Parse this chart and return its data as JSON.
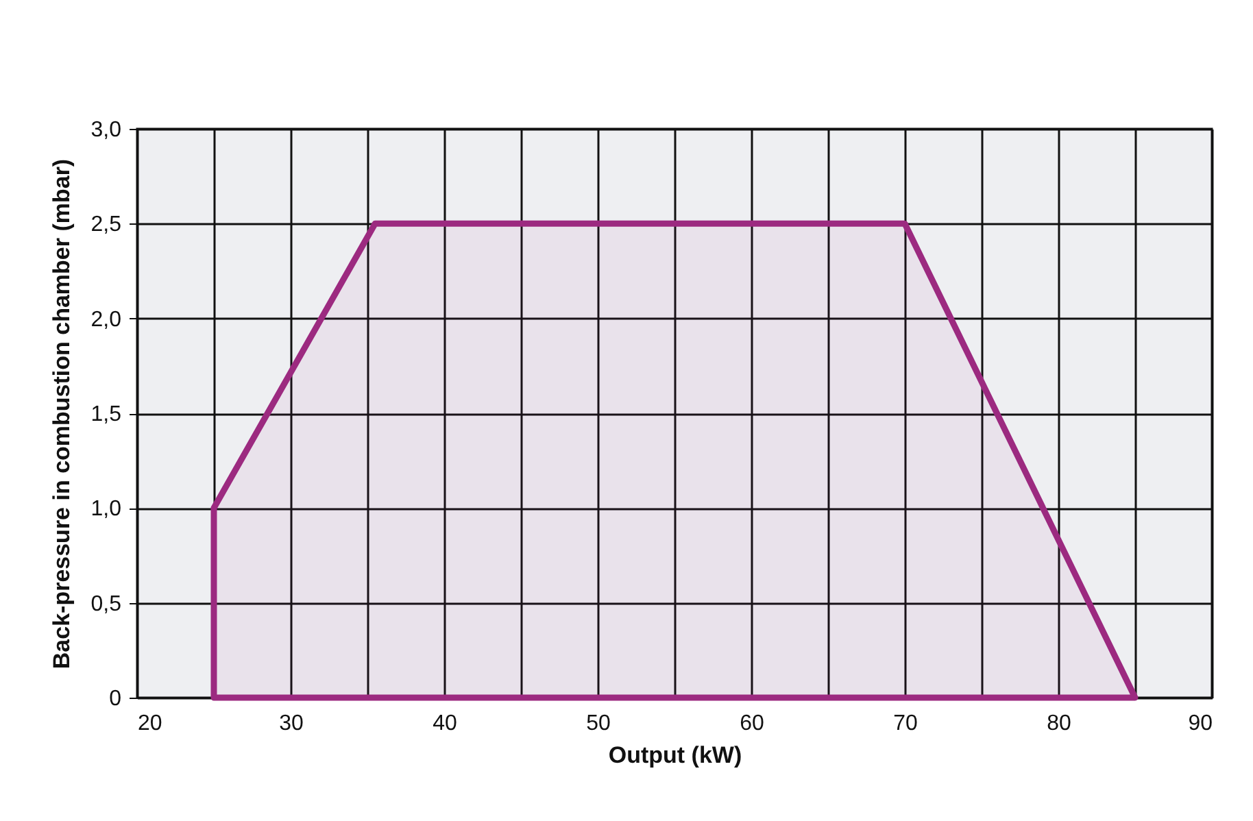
{
  "chart_data": {
    "type": "area",
    "xlabel": "Output (kW)",
    "ylabel": "Back-pressure in combustion chamber (mbar)",
    "series": [
      {
        "color": "#9c2a80",
        "x": [
          25,
          35.5,
          70,
          85
        ],
        "values": [
          1,
          2.5,
          2.5,
          0
        ]
      }
    ],
    "xlim": [
      20,
      90
    ],
    "xticks": [
      20,
      {
        "value": 25,
        "label": null
      },
      30,
      {
        "value": 35,
        "label": null
      },
      40,
      {
        "value": 45,
        "label": null
      },
      50,
      {
        "value": 55,
        "label": null
      },
      60,
      {
        "value": 65,
        "label": null
      },
      70,
      {
        "value": 75,
        "label": null
      },
      80,
      {
        "value": 85,
        "label": null
      },
      90
    ],
    "ylim": [
      0,
      3
    ],
    "yticks": [
      0,
      {
        "value": 0.5,
        "label": "0,5"
      },
      {
        "value": 1,
        "label": "1,0"
      },
      {
        "value": 1.5,
        "label": "1,5"
      },
      {
        "value": 2,
        "label": "2,0"
      },
      {
        "value": 2.5,
        "label": "2,5"
      },
      {
        "value": 3,
        "label": "3,0"
      }
    ],
    "grid": true,
    "legend": false
  }
}
